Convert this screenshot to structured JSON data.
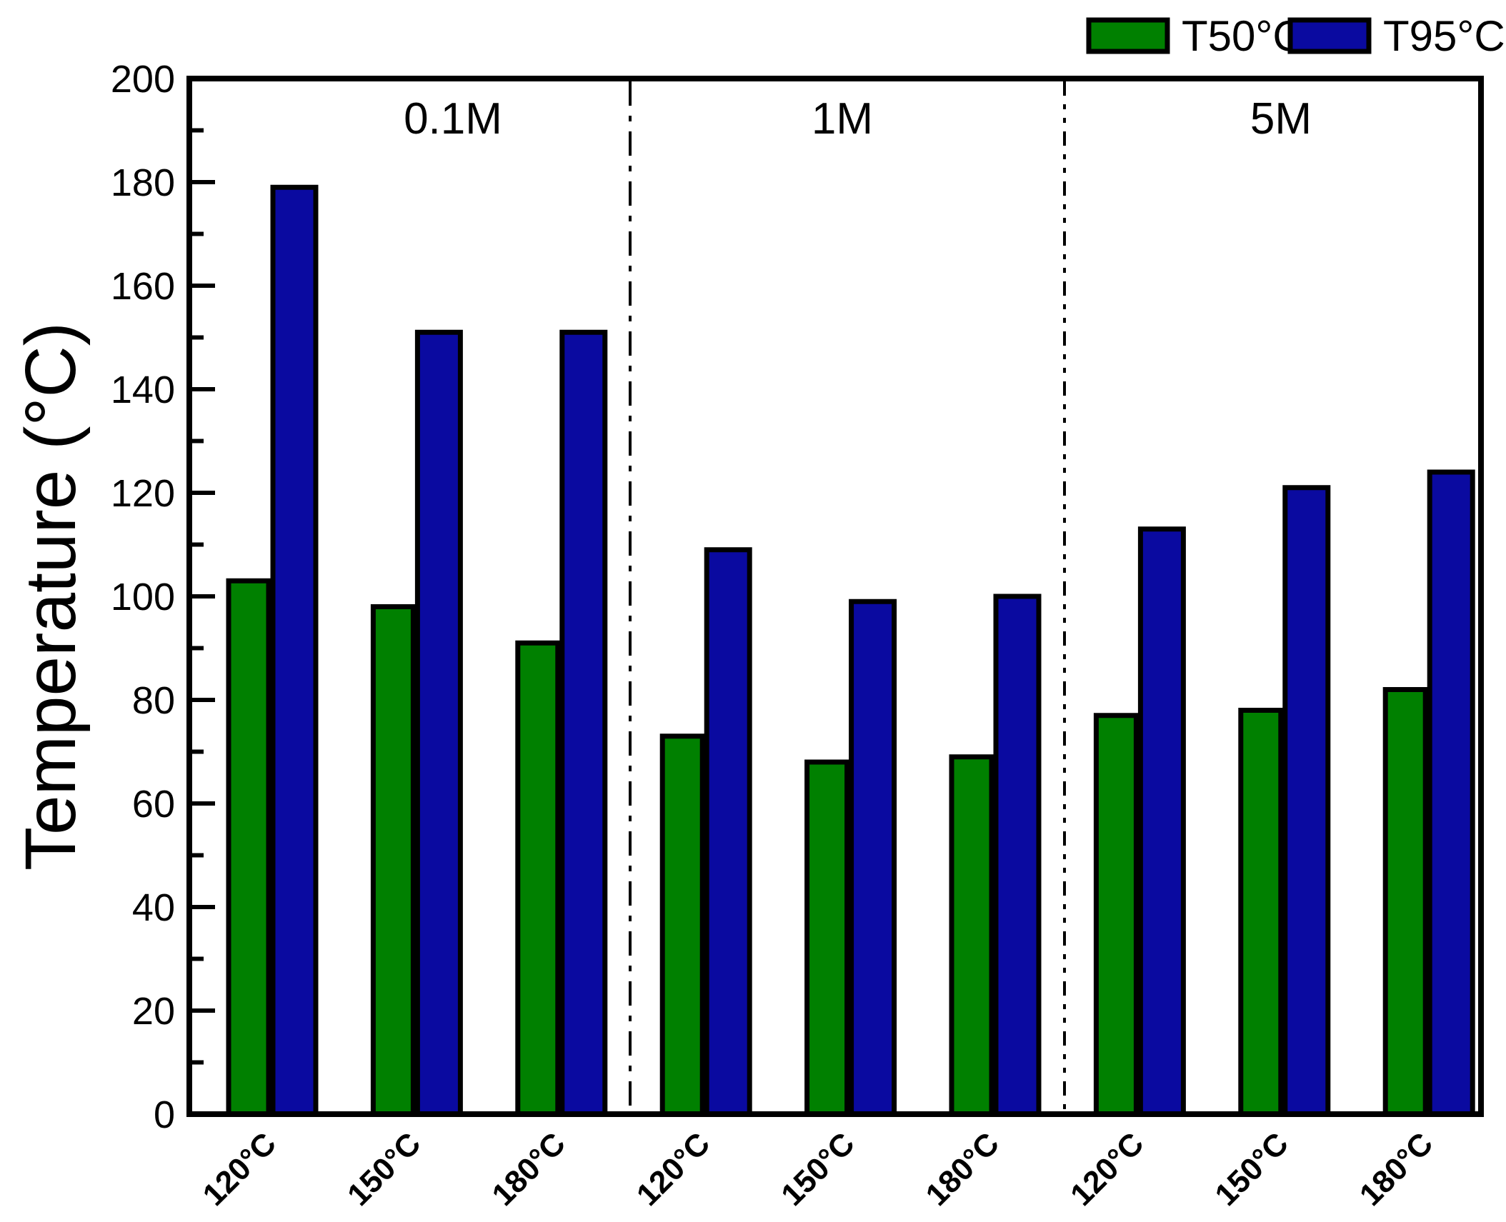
{
  "chart_data": {
    "type": "bar",
    "title": "",
    "xlabel": "",
    "ylabel": "Temperature (°C)",
    "ylim": [
      0,
      200
    ],
    "yticks": [
      0,
      20,
      40,
      60,
      80,
      100,
      120,
      140,
      160,
      180,
      200
    ],
    "yminor_step": 10,
    "grid": false,
    "legend_position": "top-right",
    "legend": [
      {
        "name": "T50°C",
        "color": "#008000"
      },
      {
        "name": "T95°C",
        "color": "#0A0AA0"
      }
    ],
    "bar_border_color": "#000000",
    "divider_style": "dash-dot",
    "groups": [
      {
        "label": "0.1M",
        "categories": [
          "120°C",
          "150°C",
          "180°C"
        ],
        "series": [
          {
            "name": "T50°C",
            "values": [
              103,
              98,
              91
            ]
          },
          {
            "name": "T95°C",
            "values": [
              179,
              151,
              151
            ]
          }
        ]
      },
      {
        "label": "1M",
        "categories": [
          "120°C",
          "150°C",
          "180°C"
        ],
        "series": [
          {
            "name": "T50°C",
            "values": [
              73,
              68,
              69
            ]
          },
          {
            "name": "T95°C",
            "values": [
              109,
              99,
              100
            ]
          }
        ]
      },
      {
        "label": "5M",
        "categories": [
          "120°C",
          "150°C",
          "180°C"
        ],
        "series": [
          {
            "name": "T50°C",
            "values": [
              77,
              78,
              82
            ]
          },
          {
            "name": "T95°C",
            "values": [
              113,
              121,
              124
            ]
          }
        ]
      }
    ]
  }
}
